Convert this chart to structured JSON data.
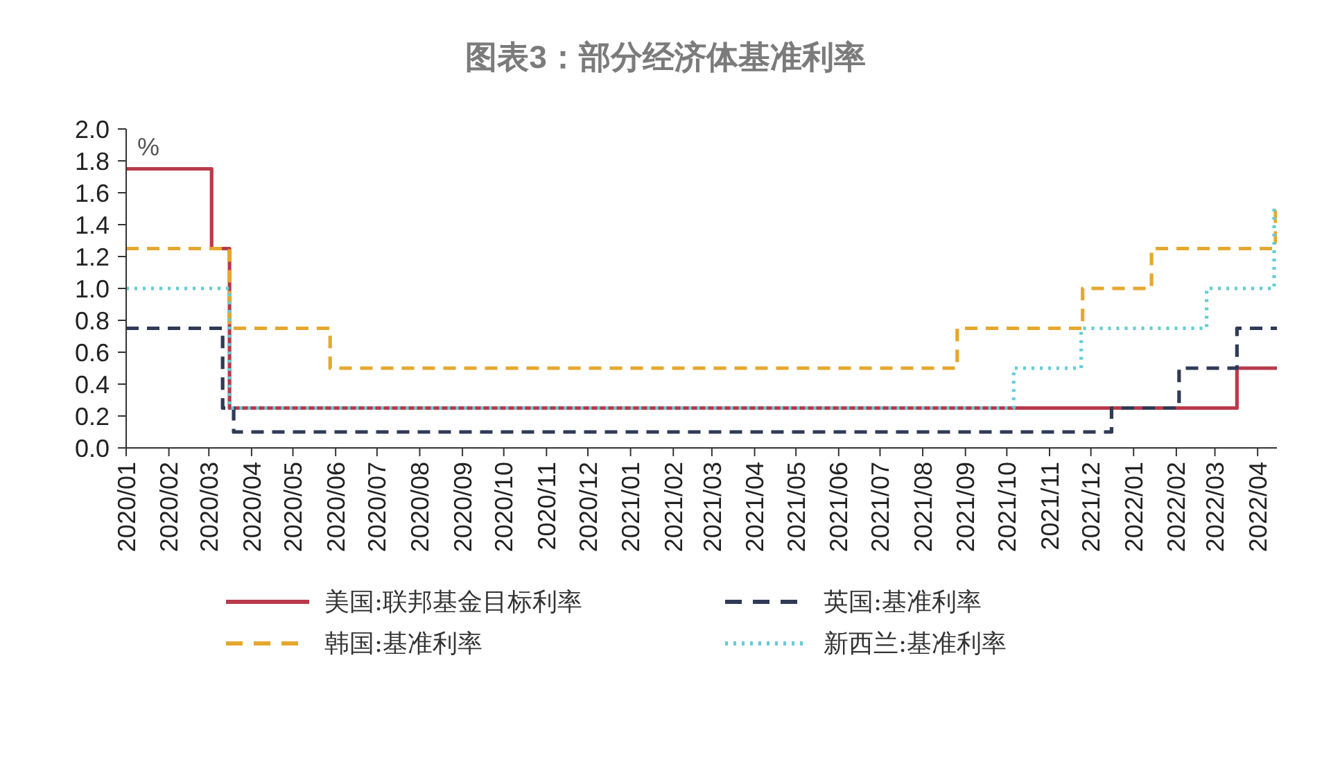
{
  "chart_data": {
    "type": "step",
    "title": "图表3：部分经济体基准利率",
    "ylabel": "%",
    "xlim": [
      "2020-01",
      "2022-04-15"
    ],
    "xticks": [
      {
        "value": "2020-01",
        "label": "2020/01"
      },
      {
        "value": "2020-02",
        "label": "2020/02"
      },
      {
        "value": "2020-03",
        "label": "2020/03"
      },
      {
        "value": "2020-04",
        "label": "2020/04"
      },
      {
        "value": "2020-05",
        "label": "2020/05"
      },
      {
        "value": "2020-06",
        "label": "2020/06"
      },
      {
        "value": "2020-07",
        "label": "2020/07"
      },
      {
        "value": "2020-08",
        "label": "2020/08"
      },
      {
        "value": "2020-09",
        "label": "2020/09"
      },
      {
        "value": "2020-10",
        "label": "2020/10"
      },
      {
        "value": "2020-11",
        "label": "2020/11"
      },
      {
        "value": "2020-12",
        "label": "2020/12"
      },
      {
        "value": "2021-01",
        "label": "2021/01"
      },
      {
        "value": "2021-02",
        "label": "2021/02"
      },
      {
        "value": "2021-03",
        "label": "2021/03"
      },
      {
        "value": "2021-04",
        "label": "2021/04"
      },
      {
        "value": "2021-05",
        "label": "2021/05"
      },
      {
        "value": "2021-06",
        "label": "2021/06"
      },
      {
        "value": "2021-07",
        "label": "2021/07"
      },
      {
        "value": "2021-08",
        "label": "2021/08"
      },
      {
        "value": "2021-09",
        "label": "2021/09"
      },
      {
        "value": "2021-10",
        "label": "2021/10"
      },
      {
        "value": "2021-11",
        "label": "2021/11"
      },
      {
        "value": "2021-12",
        "label": "2021/12"
      },
      {
        "value": "2022-01",
        "label": "2022/01"
      },
      {
        "value": "2022-02",
        "label": "2022/02"
      },
      {
        "value": "2022-03",
        "label": "2022/03"
      },
      {
        "value": "2022-04",
        "label": "2022/04"
      }
    ],
    "ylim": [
      0,
      2
    ],
    "yticks": [
      {
        "value": 0,
        "label": "0.0"
      },
      0.2,
      0.4,
      0.6,
      0.8,
      {
        "value": 1,
        "label": "1.0"
      },
      1.2,
      1.4,
      1.6,
      1.8,
      {
        "value": 2,
        "label": "2.0"
      }
    ],
    "series": [
      {
        "name": "美国:联邦基金目标利率",
        "color": "#b83a4b",
        "line_style": "solid",
        "x": [
          "2020-01-01",
          "2020-03-03",
          "2020-03-16",
          "2022-03-17",
          "2022-04-15"
        ],
        "values": [
          1.75,
          1.25,
          0.25,
          0.5,
          0.5
        ]
      },
      {
        "name": "英国:基准利率",
        "color": "#2f3a56",
        "line_style": "dashed",
        "x": [
          "2020-01-01",
          "2020-03-11",
          "2020-03-19",
          "2021-12-16",
          "2022-02-03",
          "2022-03-17",
          "2022-04-15"
        ],
        "values": [
          0.75,
          0.25,
          0.1,
          0.25,
          0.5,
          0.75,
          0.75
        ]
      },
      {
        "name": "韩国:基准利率",
        "color": "#e5a82e",
        "line_style": "dashed",
        "x": [
          "2020-01-01",
          "2020-03-16",
          "2020-05-28",
          "2021-08-26",
          "2021-11-25",
          "2022-01-14",
          "2022-04-14",
          "2022-04-15"
        ],
        "values": [
          1.25,
          0.75,
          0.5,
          0.75,
          1.0,
          1.25,
          1.5,
          1.5
        ]
      },
      {
        "name": "新西兰:基准利率",
        "color": "#63cdd6",
        "line_style": "dotted",
        "x": [
          "2020-01-01",
          "2020-03-16",
          "2021-10-06",
          "2021-11-24",
          "2022-02-23",
          "2022-04-13",
          "2022-04-15"
        ],
        "values": [
          1.0,
          0.25,
          0.5,
          0.75,
          1.0,
          1.5,
          1.5
        ]
      }
    ],
    "legend": "bottom",
    "marker": "none"
  }
}
